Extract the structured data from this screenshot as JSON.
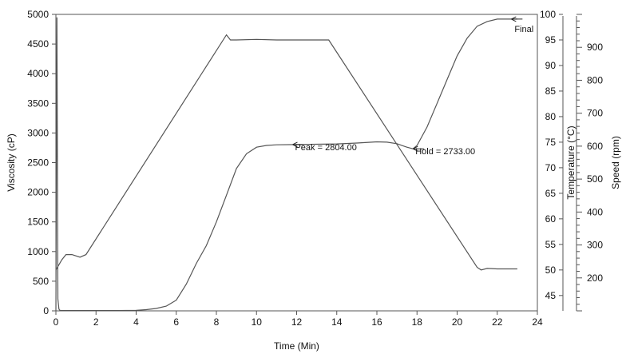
{
  "chart_data": {
    "type": "line",
    "xlabel": "Time (Min)",
    "xlim": [
      0,
      24
    ],
    "x_ticks": [
      0,
      2,
      4,
      6,
      8,
      10,
      12,
      14,
      16,
      18,
      20,
      22,
      24
    ],
    "axes": {
      "viscosity": {
        "label": "Viscosity (cP)",
        "range": [
          0,
          5000
        ],
        "ticks": [
          0,
          500,
          1000,
          1500,
          2000,
          2500,
          3000,
          3500,
          4000,
          4500,
          5000
        ],
        "side": "left"
      },
      "temperature": {
        "label": "Temperature (°C)",
        "range": [
          42,
          100
        ],
        "ticks": [
          45,
          50,
          55,
          60,
          65,
          70,
          75,
          80,
          85,
          90,
          95,
          100
        ],
        "side": "right"
      },
      "speed": {
        "label": "Speed (rpm)",
        "range": [
          100,
          1000
        ],
        "ticks": [
          200,
          300,
          400,
          500,
          600,
          700,
          800,
          900
        ],
        "side": "right"
      }
    },
    "series": [
      {
        "axis": "viscosity",
        "color": "#555555",
        "x": [
          0,
          0.05,
          0.1,
          0.15,
          0.2,
          0.3,
          0.5,
          1,
          2,
          3,
          4,
          4.5,
          5,
          5.5,
          6,
          6.5,
          7,
          7.5,
          8,
          8.5,
          9,
          9.5,
          10,
          10.5,
          11,
          12,
          13,
          14,
          15,
          16,
          16.5,
          17,
          17.5,
          17.8,
          18,
          18.5,
          19,
          19.5,
          20,
          20.5,
          21,
          21.5,
          22,
          22.5,
          23
        ],
        "y": [
          0,
          4950,
          200,
          30,
          10,
          5,
          5,
          5,
          5,
          5,
          10,
          20,
          40,
          80,
          180,
          450,
          800,
          1100,
          1500,
          1950,
          2400,
          2650,
          2760,
          2790,
          2800,
          2804,
          2810,
          2815,
          2830,
          2850,
          2845,
          2820,
          2760,
          2733,
          2790,
          3100,
          3500,
          3900,
          4300,
          4600,
          4800,
          4880,
          4920,
          4920,
          4920
        ]
      },
      {
        "axis": "temperature",
        "color": "#555555",
        "x": [
          0,
          0.3,
          0.5,
          0.8,
          1.2,
          1.5,
          8.5,
          8.7,
          9,
          10,
          11,
          12,
          13.6,
          21,
          21.2,
          21.5,
          22,
          23
        ],
        "y": [
          50,
          52,
          53,
          53,
          52.5,
          53,
          96,
          95,
          95,
          95.1,
          95,
          95,
          95,
          50.5,
          50,
          50.3,
          50.2,
          50.2
        ]
      }
    ],
    "annotations": [
      {
        "label": "Peak = 2804.00",
        "x": 11.8,
        "y": 2804
      },
      {
        "label": "Hold = 2733.00",
        "x": 17.8,
        "y": 2733
      },
      {
        "label": "Final",
        "x": 22.7,
        "y": 4920
      }
    ],
    "grid": false,
    "legend": "none"
  }
}
